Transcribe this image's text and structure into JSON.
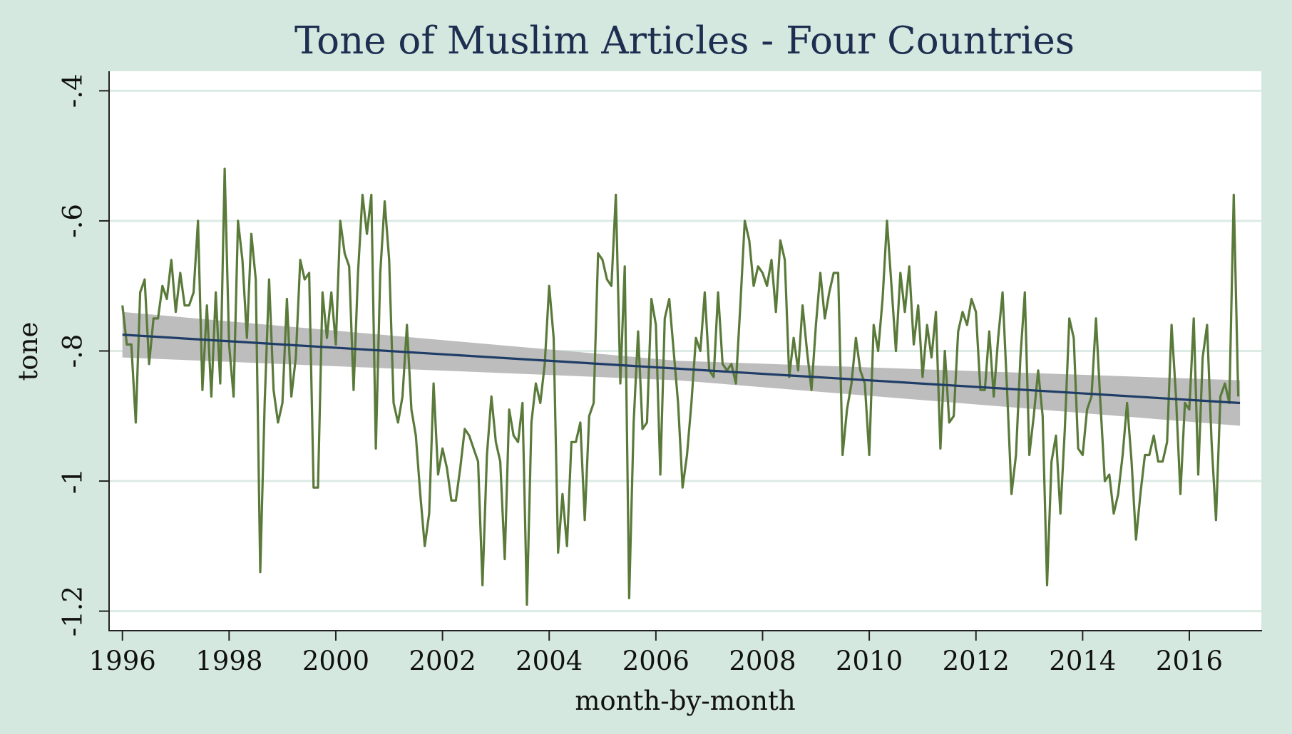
{
  "chart_data": {
    "type": "line",
    "title": "Tone of Muslim Articles - Four Countries",
    "xlabel": "month-by-month",
    "ylabel": "tone",
    "xlim": [
      1995.75,
      2017.35
    ],
    "ylim": [
      -1.23,
      -0.37
    ],
    "x_ticks": [
      1996,
      1998,
      2000,
      2002,
      2004,
      2006,
      2008,
      2010,
      2012,
      2014,
      2016
    ],
    "x_tick_labels": [
      "1996",
      "1998",
      "2000",
      "2002",
      "2004",
      "2006",
      "2008",
      "2010",
      "2012",
      "2014",
      "2016"
    ],
    "y_ticks": [
      -0.4,
      -0.6,
      -0.8,
      -1.0,
      -1.2
    ],
    "y_tick_labels": [
      "-.4",
      "-.6",
      "-.8",
      "-1",
      "-1.2"
    ],
    "grid": true,
    "legend": "none",
    "colors": {
      "background": "#d5e8df",
      "plot_area": "#ffffff",
      "gridline": "#dcebe4",
      "series_line": "#5a7a3a",
      "fit_line": "#1f3d66",
      "ci_band": "#bdbdbd",
      "title": "#1d2e50",
      "text": "#111111"
    },
    "series": [
      {
        "kind": "line",
        "x_start": 1996.0,
        "x_step": 0.0833333,
        "values": [
          -0.73,
          -0.79,
          -0.79,
          -0.91,
          -0.71,
          -0.69,
          -0.82,
          -0.75,
          -0.75,
          -0.7,
          -0.72,
          -0.66,
          -0.74,
          -0.68,
          -0.73,
          -0.73,
          -0.71,
          -0.6,
          -0.86,
          -0.73,
          -0.87,
          -0.71,
          -0.85,
          -0.52,
          -0.79,
          -0.87,
          -0.6,
          -0.66,
          -0.78,
          -0.62,
          -0.69,
          -1.14,
          -0.88,
          -0.69,
          -0.86,
          -0.91,
          -0.88,
          -0.72,
          -0.87,
          -0.81,
          -0.66,
          -0.69,
          -0.68,
          -1.01,
          -1.01,
          -0.71,
          -0.78,
          -0.71,
          -0.79,
          -0.6,
          -0.65,
          -0.67,
          -0.86,
          -0.68,
          -0.56,
          -0.62,
          -0.56,
          -0.95,
          -0.68,
          -0.57,
          -0.66,
          -0.88,
          -0.91,
          -0.87,
          -0.76,
          -0.89,
          -0.93,
          -1.02,
          -1.1,
          -1.05,
          -0.85,
          -0.99,
          -0.95,
          -0.98,
          -1.03,
          -1.03,
          -0.98,
          -0.92,
          -0.93,
          -0.95,
          -0.97,
          -1.16,
          -0.96,
          -0.87,
          -0.94,
          -0.97,
          -1.12,
          -0.89,
          -0.93,
          -0.94,
          -0.88,
          -1.19,
          -0.91,
          -0.85,
          -0.88,
          -0.82,
          -0.7,
          -0.78,
          -1.11,
          -1.02,
          -1.1,
          -0.94,
          -0.94,
          -0.91,
          -1.06,
          -0.9,
          -0.88,
          -0.65,
          -0.66,
          -0.69,
          -0.7,
          -0.56,
          -0.85,
          -0.67,
          -1.18,
          -0.91,
          -0.77,
          -0.92,
          -0.91,
          -0.72,
          -0.76,
          -0.99,
          -0.75,
          -0.72,
          -0.8,
          -0.88,
          -1.01,
          -0.96,
          -0.88,
          -0.78,
          -0.8,
          -0.71,
          -0.83,
          -0.84,
          -0.71,
          -0.82,
          -0.83,
          -0.82,
          -0.85,
          -0.73,
          -0.6,
          -0.63,
          -0.7,
          -0.67,
          -0.68,
          -0.7,
          -0.66,
          -0.74,
          -0.63,
          -0.66,
          -0.84,
          -0.78,
          -0.83,
          -0.73,
          -0.8,
          -0.86,
          -0.76,
          -0.68,
          -0.75,
          -0.71,
          -0.68,
          -0.68,
          -0.96,
          -0.89,
          -0.85,
          -0.78,
          -0.83,
          -0.85,
          -0.96,
          -0.76,
          -0.8,
          -0.72,
          -0.6,
          -0.7,
          -0.8,
          -0.68,
          -0.74,
          -0.67,
          -0.79,
          -0.73,
          -0.84,
          -0.76,
          -0.81,
          -0.74,
          -0.95,
          -0.8,
          -0.91,
          -0.9,
          -0.77,
          -0.74,
          -0.76,
          -0.72,
          -0.74,
          -0.86,
          -0.86,
          -0.77,
          -0.87,
          -0.78,
          -0.71,
          -0.86,
          -1.02,
          -0.96,
          -0.81,
          -0.71,
          -0.96,
          -0.9,
          -0.83,
          -0.9,
          -1.16,
          -0.97,
          -0.93,
          -1.05,
          -0.92,
          -0.75,
          -0.78,
          -0.95,
          -0.96,
          -0.89,
          -0.87,
          -0.75,
          -0.88,
          -1.0,
          -0.99,
          -1.05,
          -1.02,
          -0.96,
          -0.88,
          -0.97,
          -1.09,
          -1.02,
          -0.96,
          -0.96,
          -0.93,
          -0.97,
          -0.97,
          -0.94,
          -0.76,
          -0.87,
          -1.02,
          -0.88,
          -0.89,
          -0.75,
          -0.99,
          -0.81,
          -0.76,
          -0.94,
          -1.06,
          -0.87,
          -0.85,
          -0.88,
          -0.56,
          -0.87
        ]
      },
      {
        "kind": "linear-fit",
        "x": [
          1996.0,
          2016.95
        ],
        "y": [
          -0.775,
          -0.88
        ]
      },
      {
        "kind": "confidence-band",
        "x": [
          1996.0,
          2006.4,
          2016.95
        ],
        "upper": [
          -0.74,
          -0.815,
          -0.845
        ],
        "lower": [
          -0.81,
          -0.845,
          -0.915
        ]
      }
    ]
  }
}
